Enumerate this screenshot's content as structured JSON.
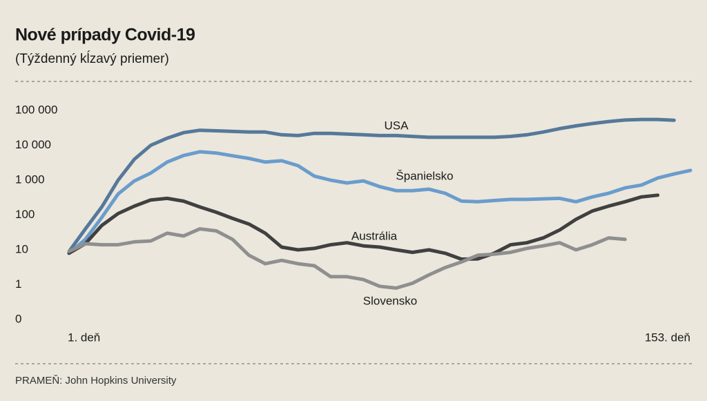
{
  "chart_data": {
    "type": "line",
    "title": "Nové prípady Covid-19",
    "subtitle": "(Týždenný kĺzavý priemer)",
    "source": "PRAMEŇ: John Hopkins University",
    "log_scale": true,
    "grid": false,
    "x": [
      1,
      5,
      9,
      13,
      17,
      21,
      25,
      29,
      33,
      37,
      41,
      45,
      49,
      53,
      57,
      61,
      65,
      69,
      73,
      77,
      81,
      85,
      89,
      93,
      97,
      101,
      105,
      109,
      113,
      117,
      121,
      125,
      129,
      133,
      137,
      141,
      145,
      149,
      153
    ],
    "xlim": [
      1,
      153
    ],
    "xticks": [
      {
        "value": 1,
        "label": "1. deň"
      },
      {
        "value": 153,
        "label": "153. deň"
      }
    ],
    "ylim": [
      0.1,
      100000
    ],
    "yticks": [
      {
        "value": 0,
        "label": "0"
      },
      1,
      10,
      100,
      {
        "value": 1000,
        "label": "1 000"
      },
      {
        "value": 10000,
        "label": "10 000"
      },
      {
        "value": 100000,
        "label": "100 000"
      }
    ],
    "series": [
      {
        "name": "USA",
        "color": "#56789a",
        "values": [
          9,
          40,
          170,
          1000,
          4000,
          10000,
          16000,
          23000,
          27000,
          26000,
          25000,
          24000,
          24000,
          20000,
          19000,
          22000,
          22000,
          21000,
          20000,
          19000,
          19000,
          18000,
          17000,
          17000,
          17000,
          17000,
          17000,
          18000,
          20000,
          24000,
          30000,
          36000,
          42000,
          48000,
          53000,
          55000,
          55000,
          52000,
          null
        ]
      },
      {
        "name": "Španielsko",
        "color": "#6a9ccc",
        "values": [
          8,
          20,
          85,
          400,
          950,
          1600,
          3300,
          5100,
          6500,
          6000,
          5000,
          4200,
          3300,
          3600,
          2600,
          1300,
          1000,
          830,
          950,
          650,
          500,
          500,
          550,
          420,
          250,
          240,
          260,
          280,
          280,
          290,
          300,
          240,
          330,
          420,
          600,
          720,
          1150,
          1500,
          1900
        ]
      },
      {
        "name": "Austrália",
        "color": "#404040",
        "values": [
          8,
          15,
          50,
          110,
          180,
          270,
          300,
          250,
          170,
          120,
          80,
          55,
          30,
          12,
          10,
          11,
          14,
          16,
          13,
          12,
          10,
          8.5,
          10,
          8,
          5.4,
          5.5,
          8,
          14,
          16,
          22,
          37,
          75,
          130,
          180,
          240,
          330,
          370,
          null,
          null
        ]
      },
      {
        "name": "Slovensko",
        "color": "#8f8f8f",
        "values": [
          9,
          15,
          14,
          14,
          17,
          18,
          30,
          25,
          40,
          35,
          20,
          7,
          4,
          5,
          4,
          3.5,
          1.7,
          1.7,
          1.4,
          0.9,
          0.8,
          1.1,
          1.9,
          3.1,
          4.5,
          7,
          7.5,
          8.5,
          11,
          13,
          16,
          10,
          14,
          22,
          20,
          null,
          null,
          null,
          null
        ]
      }
    ]
  }
}
